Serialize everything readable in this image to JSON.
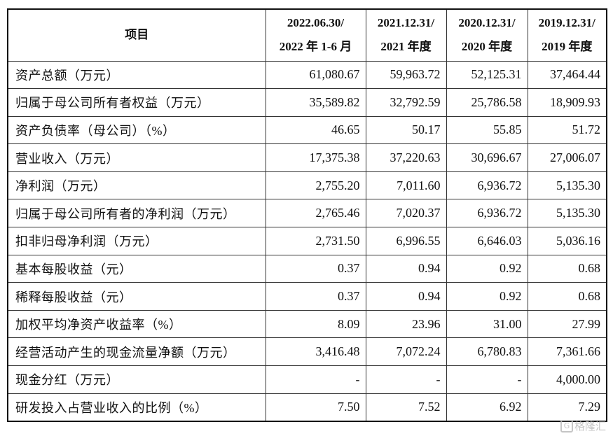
{
  "table": {
    "headers": [
      {
        "line1": "项目",
        "line2": ""
      },
      {
        "line1": "2022.06.30/",
        "line2": "2022 年 1-6 月"
      },
      {
        "line1": "2021.12.31/",
        "line2": "2021 年度"
      },
      {
        "line1": "2020.12.31/",
        "line2": "2020 年度"
      },
      {
        "line1": "2019.12.31/",
        "line2": "2019 年度"
      }
    ],
    "rows": [
      {
        "label": "资产总额（万元）",
        "values": [
          "61,080.67",
          "59,963.72",
          "52,125.31",
          "37,464.44"
        ]
      },
      {
        "label": "归属于母公司所有者权益（万元）",
        "values": [
          "35,589.82",
          "32,792.59",
          "25,786.58",
          "18,909.93"
        ]
      },
      {
        "label": "资产负债率（母公司）（%）",
        "values": [
          "46.65",
          "50.17",
          "55.85",
          "51.72"
        ]
      },
      {
        "label": "营业收入（万元）",
        "values": [
          "17,375.38",
          "37,220.63",
          "30,696.67",
          "27,006.07"
        ]
      },
      {
        "label": "净利润（万元）",
        "values": [
          "2,755.20",
          "7,011.60",
          "6,936.72",
          "5,135.30"
        ]
      },
      {
        "label": "归属于母公司所有者的净利润（万元）",
        "values": [
          "2,765.46",
          "7,020.37",
          "6,936.72",
          "5,135.30"
        ]
      },
      {
        "label": "扣非归母净利润（万元）",
        "values": [
          "2,731.50",
          "6,996.55",
          "6,646.03",
          "5,036.16"
        ]
      },
      {
        "label": "基本每股收益（元）",
        "values": [
          "0.37",
          "0.94",
          "0.92",
          "0.68"
        ]
      },
      {
        "label": "稀释每股收益（元）",
        "values": [
          "0.37",
          "0.94",
          "0.92",
          "0.68"
        ]
      },
      {
        "label": "加权平均净资产收益率（%）",
        "values": [
          "8.09",
          "23.96",
          "31.00",
          "27.99"
        ]
      },
      {
        "label": "经营活动产生的现金流量净额（万元）",
        "values": [
          "3,416.48",
          "7,072.24",
          "6,780.83",
          "7,361.66"
        ]
      },
      {
        "label": "现金分红（万元）",
        "values": [
          "-",
          "-",
          "-",
          "4,000.00"
        ]
      },
      {
        "label": "研发投入占营业收入的比例（%）",
        "values": [
          "7.50",
          "7.52",
          "6.92",
          "7.29"
        ]
      }
    ]
  },
  "watermark": {
    "text": "格隆汇",
    "icon": "gelonghui-logo-icon"
  }
}
